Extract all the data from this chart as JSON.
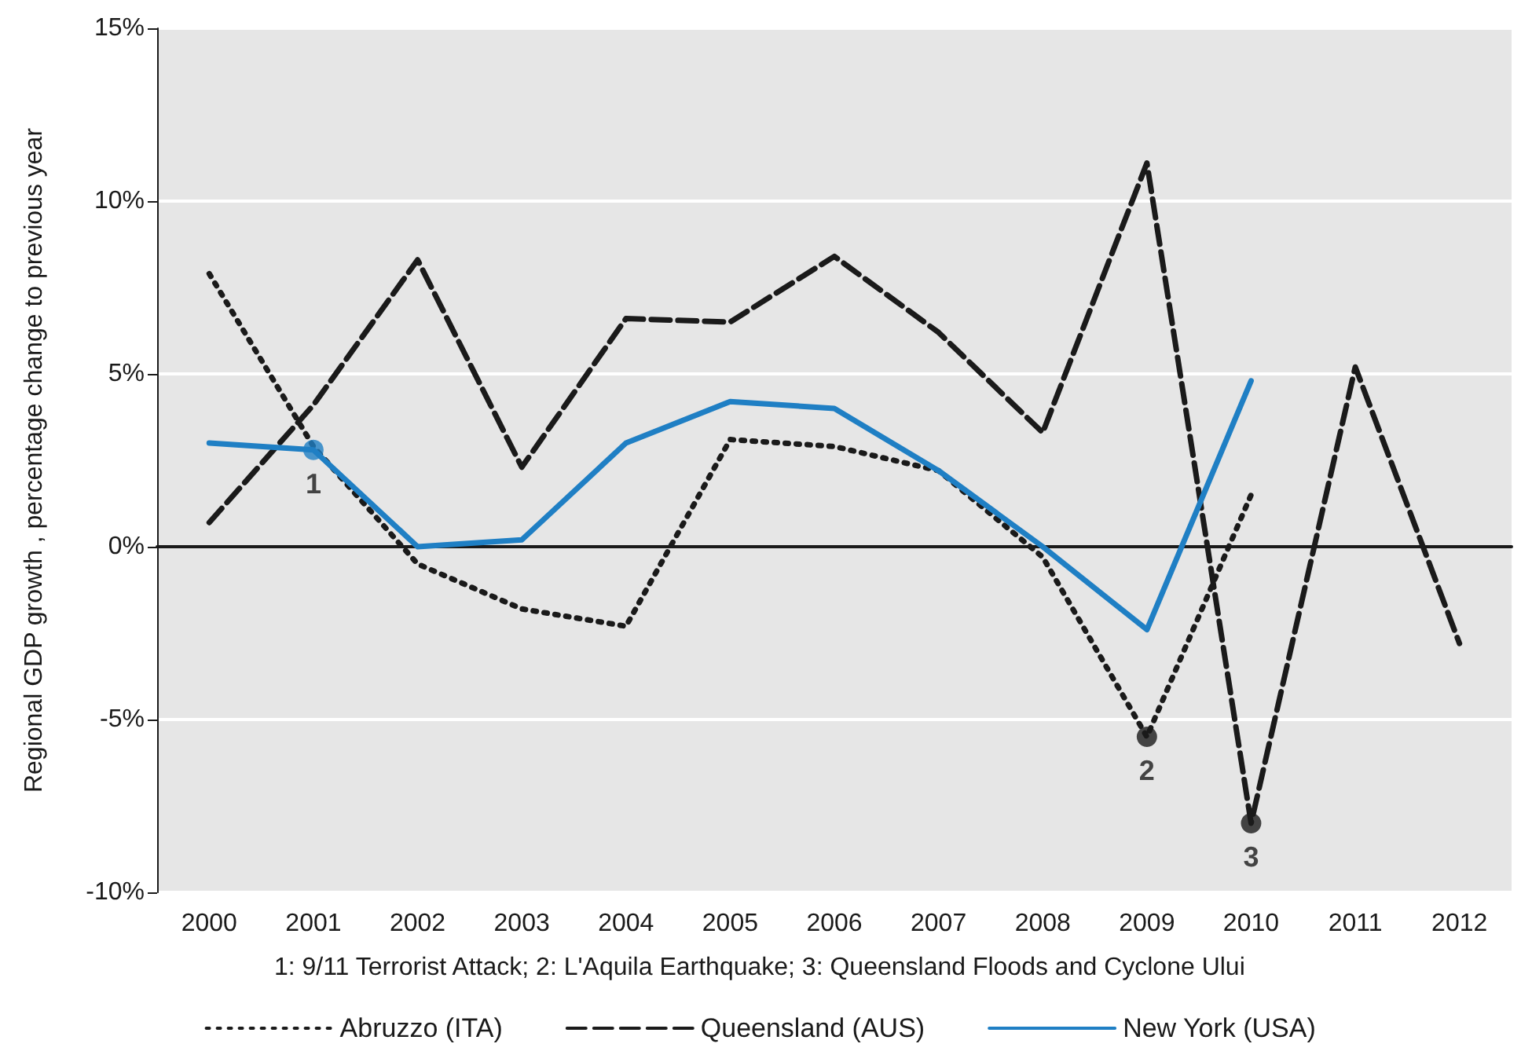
{
  "chart_data": {
    "type": "line",
    "ylabel": "Regional GDP growth , percentage change to previous year",
    "categories": [
      "2000",
      "2001",
      "2002",
      "2003",
      "2004",
      "2005",
      "2006",
      "2007",
      "2008",
      "2009",
      "2010",
      "2011",
      "2012"
    ],
    "series": [
      {
        "name": "Abruzzo (ITA)",
        "color": "#1a1a1a",
        "line_style": "dotted",
        "values": [
          7.9,
          2.9,
          -0.5,
          -1.8,
          -2.3,
          3.1,
          2.9,
          2.2,
          -0.3,
          -5.5,
          1.5,
          null,
          null
        ]
      },
      {
        "name": "Queensland (AUS)",
        "color": "#1a1a1a",
        "line_style": "dashed",
        "values": [
          0.7,
          4.1,
          8.3,
          2.3,
          6.6,
          6.5,
          8.4,
          6.2,
          3.3,
          11.1,
          -8.0,
          5.2,
          -2.8
        ]
      },
      {
        "name": "New York (USA)",
        "color": "#1f7fc4",
        "line_style": "solid",
        "values": [
          3.0,
          2.8,
          0,
          0.2,
          3.0,
          4.2,
          4.0,
          2.2,
          0,
          -2.4,
          4.8,
          null,
          null
        ]
      }
    ],
    "ylim": [
      -10,
      15
    ],
    "yticks": [
      {
        "value": -10,
        "label": "-10%"
      },
      {
        "value": -5,
        "label": "-5%"
      },
      {
        "value": 0,
        "label": "0%"
      },
      {
        "value": 5,
        "label": "5%"
      },
      {
        "value": 10,
        "label": "10%"
      },
      {
        "value": 15,
        "label": "15%"
      }
    ],
    "grid": "y",
    "legend": "bottom",
    "marker": "none",
    "annotations": [
      {
        "text": "1",
        "x": "2001",
        "y": 2.8
      },
      {
        "text": "2",
        "x": "2009",
        "y": -5.5
      },
      {
        "text": "3",
        "x": "2010",
        "y": -8.0
      },
      "1: 9/11 Terrorist Attack; 2: L'Aquila Earthquake; 3: Queensland Floods and Cyclone Ului"
    ]
  }
}
